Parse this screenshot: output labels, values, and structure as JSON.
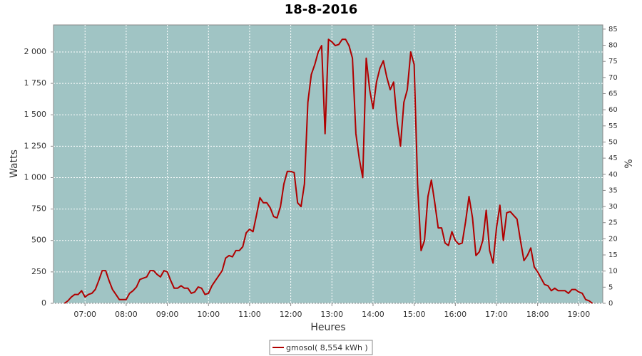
{
  "chart_data": {
    "type": "line",
    "title": "18-8-2016",
    "x_label": "Heures",
    "y_label": "Watts",
    "y2_label": "%",
    "x": [
      "06:30",
      "06:35",
      "06:40",
      "06:45",
      "06:50",
      "06:55",
      "07:00",
      "07:05",
      "07:10",
      "07:15",
      "07:20",
      "07:25",
      "07:30",
      "07:35",
      "07:40",
      "07:45",
      "07:50",
      "07:55",
      "08:00",
      "08:05",
      "08:10",
      "08:15",
      "08:20",
      "08:25",
      "08:30",
      "08:35",
      "08:40",
      "08:45",
      "08:50",
      "08:55",
      "09:00",
      "09:05",
      "09:10",
      "09:15",
      "09:20",
      "09:25",
      "09:30",
      "09:35",
      "09:40",
      "09:45",
      "09:50",
      "09:55",
      "10:00",
      "10:05",
      "10:10",
      "10:15",
      "10:20",
      "10:25",
      "10:30",
      "10:35",
      "10:40",
      "10:45",
      "10:50",
      "10:55",
      "11:00",
      "11:05",
      "11:10",
      "11:15",
      "11:20",
      "11:25",
      "11:30",
      "11:35",
      "11:40",
      "11:45",
      "11:50",
      "11:55",
      "12:00",
      "12:05",
      "12:10",
      "12:15",
      "12:20",
      "12:25",
      "12:30",
      "12:35",
      "12:40",
      "12:45",
      "12:50",
      "12:55",
      "13:00",
      "13:05",
      "13:10",
      "13:15",
      "13:20",
      "13:25",
      "13:30",
      "13:35",
      "13:40",
      "13:45",
      "13:50",
      "13:55",
      "14:00",
      "14:05",
      "14:10",
      "14:15",
      "14:20",
      "14:25",
      "14:30",
      "14:35",
      "14:40",
      "14:45",
      "14:50",
      "14:55",
      "15:00",
      "15:05",
      "15:10",
      "15:15",
      "15:20",
      "15:25",
      "15:30",
      "15:35",
      "15:40",
      "15:45",
      "15:50",
      "15:55",
      "16:00",
      "16:05",
      "16:10",
      "16:15",
      "16:20",
      "16:25",
      "16:30",
      "16:35",
      "16:40",
      "16:45",
      "16:50",
      "16:55",
      "17:00",
      "17:05",
      "17:10",
      "17:15",
      "17:20",
      "17:25",
      "17:30",
      "17:35",
      "17:40",
      "17:45",
      "17:50",
      "17:55",
      "18:00",
      "18:05",
      "18:10",
      "18:15",
      "18:20",
      "18:25",
      "18:30",
      "18:35",
      "18:40",
      "18:45",
      "18:50",
      "18:55",
      "19:00",
      "19:05",
      "19:10",
      "19:15",
      "19:20"
    ],
    "series": [
      {
        "name": "gmosol( 8,554 kWh )",
        "color": "#b00000",
        "values": [
          0,
          20,
          50,
          70,
          70,
          100,
          50,
          70,
          80,
          110,
          180,
          260,
          260,
          180,
          110,
          70,
          30,
          30,
          30,
          80,
          100,
          130,
          190,
          200,
          210,
          260,
          260,
          230,
          210,
          260,
          250,
          180,
          120,
          120,
          140,
          120,
          120,
          80,
          90,
          130,
          120,
          70,
          80,
          140,
          180,
          220,
          260,
          360,
          380,
          370,
          420,
          420,
          450,
          560,
          590,
          570,
          700,
          840,
          800,
          800,
          760,
          690,
          680,
          770,
          950,
          1050,
          1050,
          1040,
          800,
          770,
          950,
          1600,
          1820,
          1900,
          2000,
          2050,
          1350,
          2100,
          2080,
          2050,
          2060,
          2100,
          2100,
          2050,
          1950,
          1350,
          1150,
          1000,
          1950,
          1700,
          1550,
          1760,
          1870,
          1930,
          1800,
          1700,
          1760,
          1450,
          1250,
          1600,
          1700,
          2000,
          1900,
          950,
          420,
          500,
          850,
          980,
          800,
          600,
          600,
          480,
          460,
          570,
          500,
          470,
          480,
          650,
          850,
          680,
          380,
          410,
          500,
          740,
          420,
          320,
          600,
          780,
          500,
          720,
          730,
          700,
          670,
          500,
          340,
          380,
          440,
          290,
          250,
          200,
          150,
          140,
          100,
          120,
          100,
          100,
          100,
          80,
          110,
          110,
          90,
          80,
          30,
          20,
          0
        ]
      }
    ],
    "xlim": [
      "06:14",
      "19:35"
    ],
    "xticks": [
      "07:00",
      "08:00",
      "09:00",
      "10:00",
      "11:00",
      "12:00",
      "13:00",
      "14:00",
      "15:00",
      "16:00",
      "17:00",
      "18:00",
      "19:00"
    ],
    "ylim": [
      0,
      2215
    ],
    "yticks": [
      0,
      250,
      500,
      750,
      {
        "value": 1000,
        "label": "1 000"
      },
      {
        "value": 1250,
        "label": "1 250"
      },
      {
        "value": 1500,
        "label": "1 500"
      },
      {
        "value": 1750,
        "label": "1 750"
      },
      {
        "value": 2000,
        "label": "2 000"
      }
    ],
    "y2lim": [
      0,
      86.3
    ],
    "y2ticks": [
      0,
      5,
      10,
      15,
      20,
      25,
      30,
      35,
      40,
      45,
      50,
      55,
      60,
      65,
      70,
      75,
      80,
      85
    ],
    "grid": true,
    "legend": "bottom"
  }
}
